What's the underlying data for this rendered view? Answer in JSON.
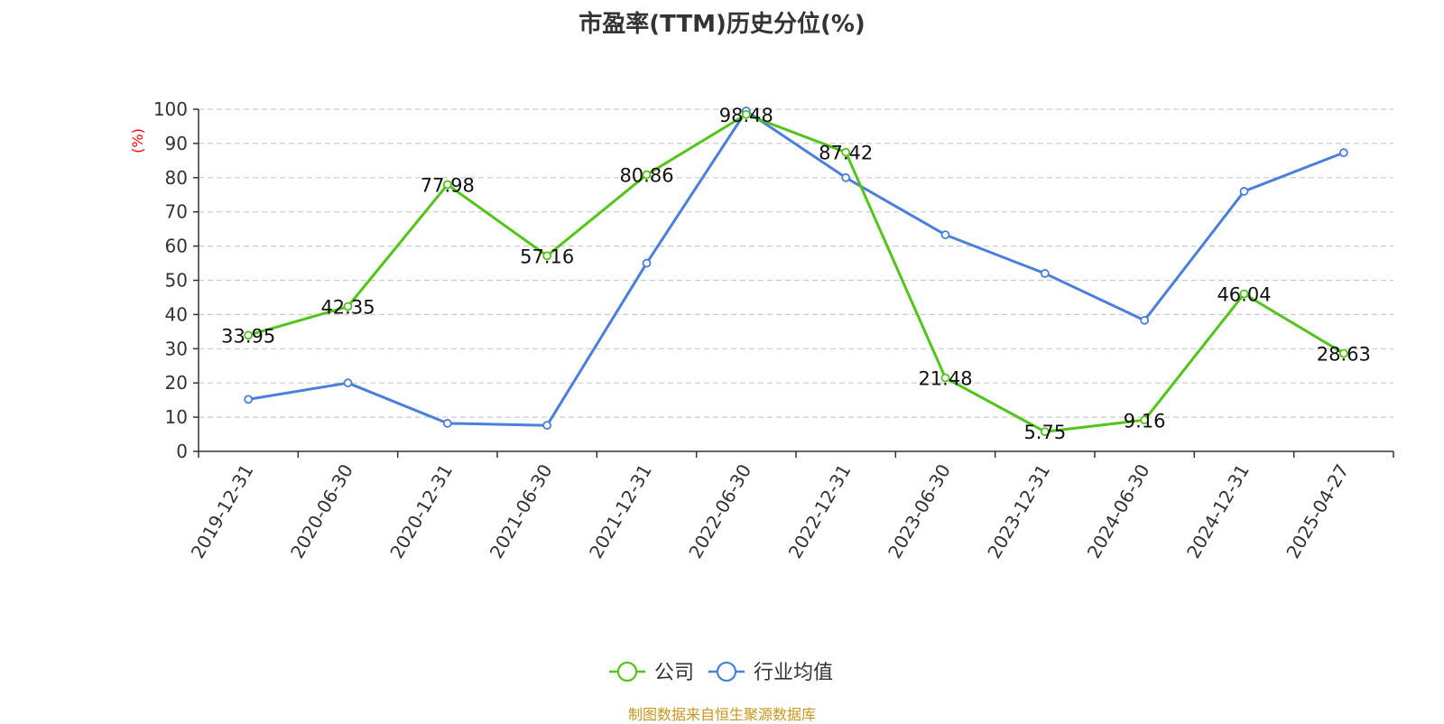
{
  "chart_data": {
    "type": "line",
    "title": "市盈率(TTM)历史分位(%)",
    "ylabel": "(%)",
    "xlabel": "",
    "ylim": [
      0,
      100
    ],
    "yticks": [
      0,
      10,
      20,
      30,
      40,
      50,
      60,
      70,
      80,
      90,
      100
    ],
    "grid": true,
    "legend_position": "bottom",
    "categories": [
      "2019-12-31",
      "2020-06-30",
      "2020-12-31",
      "2021-06-30",
      "2021-12-31",
      "2022-06-30",
      "2022-12-31",
      "2023-06-30",
      "2023-12-31",
      "2024-06-30",
      "2024-12-31",
      "2025-04-27"
    ],
    "series": [
      {
        "name": "公司",
        "color": "#52c41a",
        "values": [
          33.95,
          42.35,
          77.98,
          57.16,
          80.86,
          98.48,
          87.42,
          21.48,
          5.75,
          9.16,
          46.04,
          28.63
        ],
        "labels": [
          "33.95",
          "42.35",
          "77.98",
          "57.16",
          "80.86",
          "98.48",
          "87.42",
          "21.48",
          "5.75",
          "9.16",
          "46.04",
          "28.63"
        ]
      },
      {
        "name": "行业均值",
        "color": "#4a7fdc",
        "values": [
          15.2,
          20.0,
          8.2,
          7.6,
          55.0,
          99.5,
          80.0,
          63.3,
          52.0,
          38.3,
          76.0,
          87.3
        ]
      }
    ]
  },
  "source_note": "制图数据来自恒生聚源数据库",
  "colors": {
    "source_note": "#c8961e",
    "axis_unit": "#ff0000",
    "grid": "#cccccc",
    "axis": "#333333"
  }
}
